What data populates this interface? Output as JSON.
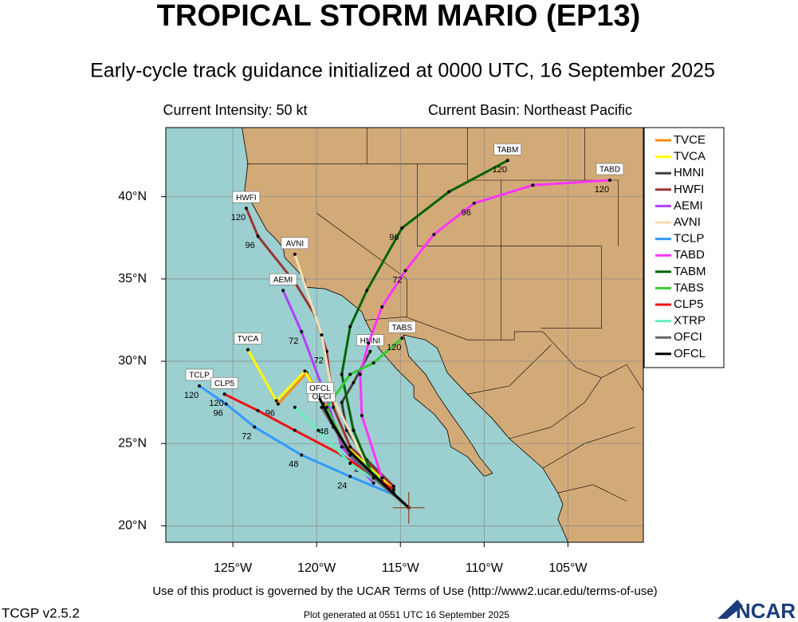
{
  "header": {
    "title": "TROPICAL STORM MARIO (EP13)",
    "subtitle": "Early-cycle track guidance initialized at 0000 UTC, 16 September 2025",
    "intensity": "Current Intensity: 50 kt",
    "basin": "Current Basin: Northeast Pacific"
  },
  "map": {
    "xlim": [
      -129,
      -100.5
    ],
    "ylim": [
      19,
      44.2
    ],
    "xticks": [
      {
        "value": -125,
        "label": "125°W"
      },
      {
        "value": -120,
        "label": "120°W"
      },
      {
        "value": -115,
        "label": "115°W"
      },
      {
        "value": -110,
        "label": "110°W"
      },
      {
        "value": -105,
        "label": "105°W"
      }
    ],
    "yticks": [
      {
        "value": 20,
        "label": "20°N"
      },
      {
        "value": 25,
        "label": "25°N"
      },
      {
        "value": 30,
        "label": "30°N"
      },
      {
        "value": 35,
        "label": "35°N"
      },
      {
        "value": 40,
        "label": "40°N"
      }
    ],
    "current_position": {
      "lon": -114.5,
      "lat": 21.1
    },
    "tracks": [
      {
        "name": "TVCE",
        "color": "#ff8c00",
        "tag": false,
        "points": [
          {
            "lon": -115.4,
            "lat": 22.2
          },
          {
            "lon": -116.9,
            "lat": 23.5
          },
          {
            "lon": -118.3,
            "lat": 24.9
          },
          {
            "lon": -119.4,
            "lat": 27.2
          },
          {
            "lon": -120.6,
            "lat": 29.3
          },
          {
            "lon": -122.3,
            "lat": 27.4,
            "hour": 96
          },
          {
            "lon": -124.1,
            "lat": 30.7
          }
        ]
      },
      {
        "name": "TVCA",
        "color": "#ffff00",
        "tag": true,
        "points": [
          {
            "lon": -115.5,
            "lat": 22.3
          },
          {
            "lon": -117.0,
            "lat": 23.7
          },
          {
            "lon": -118.5,
            "lat": 25.1
          },
          {
            "lon": -119.6,
            "lat": 27.4
          },
          {
            "lon": -120.7,
            "lat": 29.4
          },
          {
            "lon": -122.4,
            "lat": 27.6
          },
          {
            "lon": -124.1,
            "lat": 30.7
          }
        ]
      },
      {
        "name": "HMNI",
        "color": "#404040",
        "tag": true,
        "points": [
          {
            "lon": -115.4,
            "lat": 22.4
          },
          {
            "lon": -117.0,
            "lat": 24.0,
            "hour": 24
          },
          {
            "lon": -118.2,
            "lat": 25.8
          },
          {
            "lon": -118.5,
            "lat": 27.5
          },
          {
            "lon": -117.8,
            "lat": 28.7
          },
          {
            "lon": -116.8,
            "lat": 30.6
          }
        ]
      },
      {
        "name": "HWFI",
        "color": "#993333",
        "tag": true,
        "points": [
          {
            "lon": -115.4,
            "lat": 22.4
          },
          {
            "lon": -118.0,
            "lat": 24.8
          },
          {
            "lon": -119.0,
            "lat": 27.2
          },
          {
            "lon": -119.4,
            "lat": 30.6,
            "hour": 72
          },
          {
            "lon": -120.1,
            "lat": 32.8
          },
          {
            "lon": -121.3,
            "lat": 34.8
          },
          {
            "lon": -123.5,
            "lat": 37.6,
            "hour": 96
          },
          {
            "lon": -124.2,
            "lat": 39.3,
            "hour": 120
          }
        ]
      },
      {
        "name": "AEMI",
        "color": "#b040ff",
        "tag": true,
        "points": [
          {
            "lon": -116.6,
            "lat": 22.6
          },
          {
            "lon": -118.5,
            "lat": 24.8
          },
          {
            "lon": -119.4,
            "lat": 27.7
          },
          {
            "lon": -120.9,
            "lat": 31.8,
            "hour": 72
          },
          {
            "lon": -122.0,
            "lat": 34.3
          }
        ]
      },
      {
        "name": "AVNI",
        "color": "#f5deb3",
        "tag": true,
        "points": [
          {
            "lon": -116.6,
            "lat": 22.9
          },
          {
            "lon": -119.0,
            "lat": 27.7
          },
          {
            "lon": -119.7,
            "lat": 31.6
          },
          {
            "lon": -121.3,
            "lat": 36.5
          }
        ]
      },
      {
        "name": "TCLP",
        "color": "#3399ff",
        "tag": true,
        "points": [
          {
            "lon": -115.4,
            "lat": 21.9
          },
          {
            "lon": -118.0,
            "lat": 23.0,
            "hour": 24
          },
          {
            "lon": -120.9,
            "lat": 24.3,
            "hour": 48
          },
          {
            "lon": -123.7,
            "lat": 26.0,
            "hour": 72
          },
          {
            "lon": -125.4,
            "lat": 27.4,
            "hour": 96
          },
          {
            "lon": -127.0,
            "lat": 28.5,
            "hour": 120
          }
        ]
      },
      {
        "name": "TABD",
        "color": "#ff33ff",
        "tag": true,
        "points": [
          {
            "lon": -116.1,
            "lat": 22.9
          },
          {
            "lon": -117.3,
            "lat": 26.7
          },
          {
            "lon": -117.4,
            "lat": 29.2
          },
          {
            "lon": -116.9,
            "lat": 31.1
          },
          {
            "lon": -116.1,
            "lat": 33.3
          },
          {
            "lon": -114.7,
            "lat": 35.5,
            "hour": 72
          },
          {
            "lon": -113.0,
            "lat": 37.7
          },
          {
            "lon": -110.6,
            "lat": 39.6,
            "hour": 96
          },
          {
            "lon": -107.1,
            "lat": 40.7
          },
          {
            "lon": -102.5,
            "lat": 41.0,
            "hour": 120
          }
        ]
      },
      {
        "name": "TABM",
        "color": "#006400",
        "tag": true,
        "points": [
          {
            "lon": -116.6,
            "lat": 22.9
          },
          {
            "lon": -117.8,
            "lat": 25.8
          },
          {
            "lon": -118.5,
            "lat": 29.2
          },
          {
            "lon": -118.0,
            "lat": 32.1
          },
          {
            "lon": -117.0,
            "lat": 34.3
          },
          {
            "lon": -114.9,
            "lat": 38.1,
            "hour": 96
          },
          {
            "lon": -112.1,
            "lat": 40.3
          },
          {
            "lon": -108.6,
            "lat": 42.2,
            "hour": 120
          }
        ]
      },
      {
        "name": "TABS",
        "color": "#33cc33",
        "tag": true,
        "points": [
          {
            "lon": -116.1,
            "lat": 22.7
          },
          {
            "lon": -118.3,
            "lat": 24.8
          },
          {
            "lon": -119.4,
            "lat": 27.2
          },
          {
            "lon": -118.0,
            "lat": 29.2
          },
          {
            "lon": -116.6,
            "lat": 29.9
          },
          {
            "lon": -114.9,
            "lat": 31.4,
            "hour": 120
          }
        ]
      },
      {
        "name": "CLP5",
        "color": "#ee1111",
        "tag": true,
        "points": [
          {
            "lon": -115.4,
            "lat": 22.2
          },
          {
            "lon": -118.5,
            "lat": 24.3
          },
          {
            "lon": -121.3,
            "lat": 25.8
          },
          {
            "lon": -123.5,
            "lat": 27.0
          },
          {
            "lon": -125.5,
            "lat": 28.0,
            "hour": 120
          }
        ]
      },
      {
        "name": "XTRP",
        "color": "#66eebb",
        "tag": false,
        "points": [
          {
            "lon": -115.4,
            "lat": 22.0
          },
          {
            "lon": -118.0,
            "lat": 23.8
          },
          {
            "lon": -119.9,
            "lat": 25.8
          },
          {
            "lon": -121.3,
            "lat": 27.2
          }
        ]
      },
      {
        "name": "OFCI",
        "color": "#666666",
        "tag": true,
        "points": [
          {
            "lon": -114.5,
            "lat": 21.1
          },
          {
            "lon": -116.6,
            "lat": 22.9
          },
          {
            "lon": -118.0,
            "lat": 24.3
          },
          {
            "lon": -119.0,
            "lat": 26.0
          },
          {
            "lon": -119.7,
            "lat": 27.2
          }
        ]
      },
      {
        "name": "OFCL",
        "color": "#000000",
        "tag": true,
        "points": [
          {
            "lon": -114.5,
            "lat": 21.1
          },
          {
            "lon": -116.5,
            "lat": 23.0
          },
          {
            "lon": -118.1,
            "lat": 24.6
          },
          {
            "lon": -119.1,
            "lat": 26.3,
            "hour": 48
          },
          {
            "lon": -119.8,
            "lat": 27.7
          }
        ]
      }
    ]
  },
  "footer": {
    "terms": "Use of this product is governed by the UCAR Terms of Use (http://www2.ucar.edu/terms-of-use)",
    "version": "TCGP v2.5.2",
    "generated": "Plot generated at 0551 UTC   16 September 2025",
    "logo": "NCAR"
  }
}
